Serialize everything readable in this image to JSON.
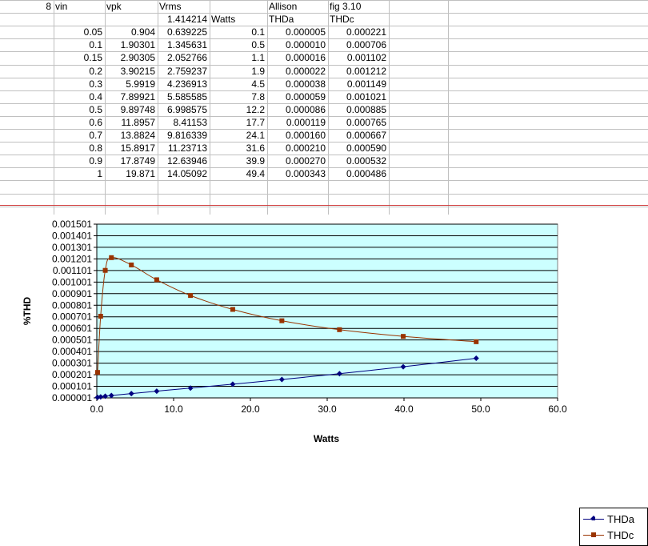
{
  "sheet": {
    "header1": [
      "8",
      "vin",
      "vpk",
      "Vrms",
      "",
      "Allison",
      "fig 3.10"
    ],
    "header2": [
      "",
      "",
      "",
      "1.414214",
      "Watts",
      "THDa",
      "THDc"
    ],
    "rows": [
      [
        "0.05",
        "0.904",
        "0.639225",
        "0.1",
        "0.000005",
        "0.000221"
      ],
      [
        "0.1",
        "1.90301",
        "1.345631",
        "0.5",
        "0.000010",
        "0.000706"
      ],
      [
        "0.15",
        "2.90305",
        "2.052766",
        "1.1",
        "0.000016",
        "0.001102"
      ],
      [
        "0.2",
        "3.90215",
        "2.759237",
        "1.9",
        "0.000022",
        "0.001212"
      ],
      [
        "0.3",
        "5.9919",
        "4.236913",
        "4.5",
        "0.000038",
        "0.001149"
      ],
      [
        "0.4",
        "7.89921",
        "5.585585",
        "7.8",
        "0.000059",
        "0.001021"
      ],
      [
        "0.5",
        "9.89748",
        "6.998575",
        "12.2",
        "0.000086",
        "0.000885"
      ],
      [
        "0.6",
        "11.8957",
        "8.41153",
        "17.7",
        "0.000119",
        "0.000765"
      ],
      [
        "0.7",
        "13.8824",
        "9.816339",
        "24.1",
        "0.000160",
        "0.000667"
      ],
      [
        "0.8",
        "15.8917",
        "11.23713",
        "31.6",
        "0.000210",
        "0.000590"
      ],
      [
        "0.9",
        "17.8749",
        "12.63946",
        "39.9",
        "0.000270",
        "0.000532"
      ],
      [
        "1",
        "19.871",
        "14.05092",
        "49.4",
        "0.000343",
        "0.000486"
      ]
    ]
  },
  "chart_data": {
    "type": "line",
    "xlabel": "Watts",
    "ylabel": "%THD",
    "xlim": [
      0,
      60
    ],
    "ylim": [
      1e-06,
      0.001501
    ],
    "x_ticks": [
      "0.0",
      "10.0",
      "20.0",
      "30.0",
      "40.0",
      "50.0",
      "60.0"
    ],
    "y_ticks": [
      "0.000001",
      "0.000101",
      "0.000201",
      "0.000301",
      "0.000401",
      "0.000501",
      "0.000601",
      "0.000701",
      "0.000801",
      "0.000901",
      "0.001001",
      "0.001101",
      "0.001201",
      "0.001301",
      "0.001401",
      "0.001501"
    ],
    "grid": true,
    "legend_position": "right",
    "plot_bg": "#ccffff",
    "series": [
      {
        "name": "THDa",
        "color": "#000080",
        "marker": "diamond",
        "x": [
          0.1,
          0.5,
          1.1,
          1.9,
          4.5,
          7.8,
          12.2,
          17.7,
          24.1,
          31.6,
          39.9,
          49.4
        ],
        "y": [
          5e-06,
          1e-05,
          1.6e-05,
          2.2e-05,
          3.8e-05,
          5.9e-05,
          8.6e-05,
          0.000119,
          0.00016,
          0.00021,
          0.00027,
          0.000343
        ]
      },
      {
        "name": "THDc",
        "color": "#993300",
        "marker": "square",
        "x": [
          0.1,
          0.5,
          1.1,
          1.9,
          4.5,
          7.8,
          12.2,
          17.7,
          24.1,
          31.6,
          39.9,
          49.4
        ],
        "y": [
          0.000221,
          0.000706,
          0.001102,
          0.001212,
          0.001149,
          0.001021,
          0.000885,
          0.000765,
          0.000667,
          0.00059,
          0.000532,
          0.000486
        ]
      }
    ]
  }
}
